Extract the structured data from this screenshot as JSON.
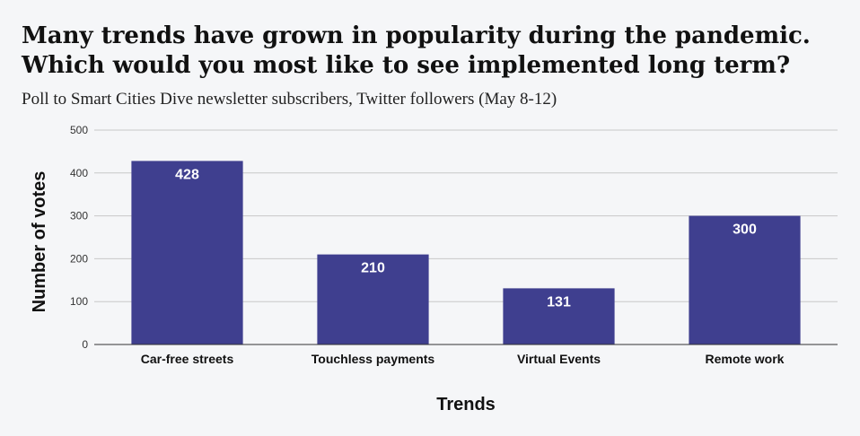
{
  "chart_data": {
    "type": "bar",
    "title_lines": [
      "Many trends have grown in popularity during the pandemic.",
      "Which would you most like to see implemented long term?"
    ],
    "subtitle": "Poll to Smart Cities Dive newsletter subscribers, Twitter followers (May 8-12)",
    "xlabel": "Trends",
    "ylabel": "Number of votes",
    "categories": [
      "Car-free streets",
      "Touchless payments",
      "Virtual Events",
      "Remote work"
    ],
    "values": [
      428,
      210,
      131,
      300
    ],
    "data_labels": [
      "428",
      "210",
      "131",
      "300"
    ],
    "ylim": [
      0,
      500
    ],
    "yticks": [
      "0",
      "100",
      "200",
      "300",
      "400",
      "500"
    ],
    "grid": true,
    "bar_color": "#3f3f8f",
    "grid_color": "#c8c8c8",
    "axis_color": "#333333"
  }
}
